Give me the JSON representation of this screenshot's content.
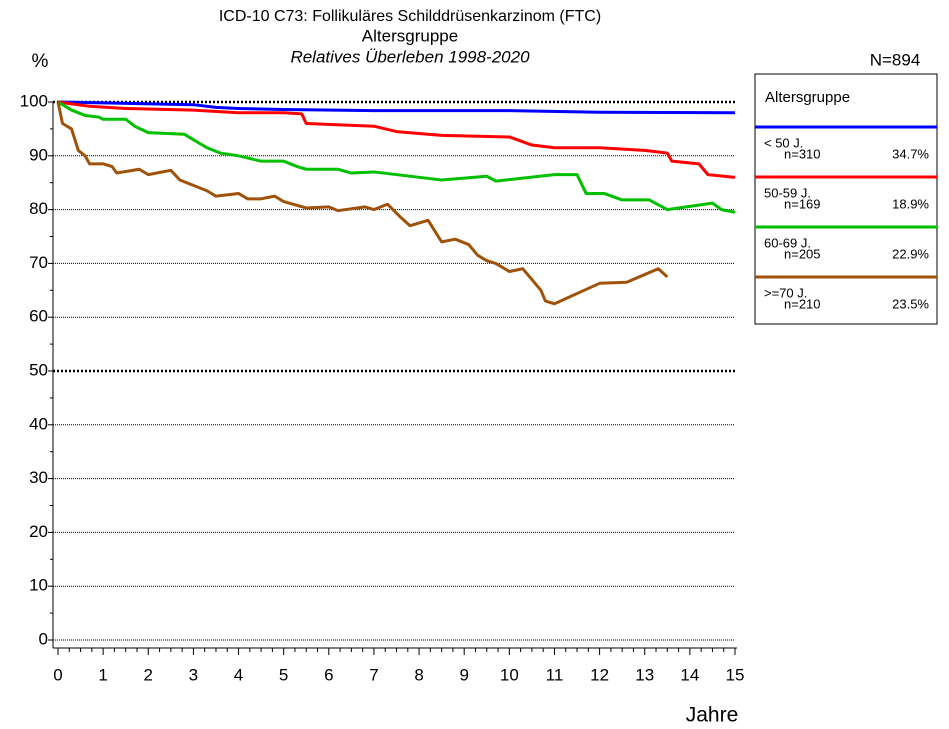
{
  "chart_data": {
    "type": "line",
    "title": "ICD-10 C73: Follikuläres Schilddrüsenkarzinom (FTC)",
    "subtitle": "Altersgruppe",
    "subtitle2": "Relatives Überleben 1998-2020",
    "total": "N=894",
    "y_label": "%",
    "x_label": "Jahre",
    "legend_title": "Altersgruppe",
    "xlim": [
      0,
      15
    ],
    "xticks": [
      0,
      1,
      2,
      3,
      4,
      5,
      6,
      7,
      8,
      9,
      10,
      11,
      12,
      13,
      14,
      15
    ],
    "ylim": [
      0,
      100
    ],
    "yticks": [
      0,
      10,
      20,
      30,
      40,
      50,
      60,
      70,
      80,
      90,
      100
    ],
    "grid": true,
    "emphasized_gridlines": [
      50,
      100
    ],
    "series": [
      {
        "name": "< 50 J.",
        "n": "n=310",
        "share": "34.7%",
        "color": "#0000ff",
        "x": [
          0,
          3,
          3.5,
          4,
          5,
          7,
          10,
          12,
          15
        ],
        "values": [
          100,
          99.5,
          99,
          98.8,
          98.6,
          98.4,
          98.4,
          98.1,
          98
        ]
      },
      {
        "name": "50-59 J.",
        "n": "n=169",
        "share": "18.9%",
        "color": "#ff0000",
        "x": [
          0,
          0.7,
          1.5,
          3,
          4,
          5,
          5.4,
          5.5,
          7,
          7.5,
          8.5,
          10,
          10.5,
          11,
          12,
          13,
          13.5,
          13.6,
          14.2,
          14.4,
          15
        ],
        "values": [
          100,
          99.2,
          98.8,
          98.5,
          98,
          98,
          97.8,
          96,
          95.5,
          94.5,
          93.8,
          93.5,
          92,
          91.5,
          91.5,
          91,
          90.5,
          89,
          88.5,
          86.5,
          86
        ]
      },
      {
        "name": "60-69 J.",
        "n": "n=205",
        "share": "22.9%",
        "color": "#00c000",
        "x": [
          0,
          0.3,
          0.6,
          0.9,
          1,
          1.5,
          1.7,
          2,
          2.8,
          3,
          3.3,
          3.6,
          4,
          4.5,
          5,
          5.3,
          5.5,
          6.2,
          6.5,
          7,
          8,
          8.5,
          9.5,
          9.7,
          11,
          11.5,
          11.7,
          12.1,
          12.5,
          13.1,
          13.5,
          14.5,
          14.7,
          15
        ],
        "values": [
          100,
          98.5,
          97.5,
          97.2,
          96.8,
          96.8,
          95.5,
          94.3,
          94,
          93,
          91.5,
          90.5,
          90,
          89,
          89,
          88,
          87.5,
          87.5,
          86.8,
          87,
          86,
          85.5,
          86.2,
          85.3,
          86.5,
          86.5,
          83,
          83,
          81.8,
          81.8,
          80,
          81.2,
          80,
          79.5
        ]
      },
      {
        "name": ">=70 J.",
        "n": "n=210",
        "share": "23.5%",
        "color": "#a0520a",
        "x": [
          0,
          0.1,
          0.3,
          0.45,
          0.6,
          0.7,
          1,
          1.2,
          1.3,
          1.8,
          2,
          2.5,
          2.7,
          3,
          3.3,
          3.5,
          4,
          4.2,
          4.5,
          4.8,
          5,
          5.5,
          6,
          6.2,
          6.8,
          7,
          7.3,
          7.6,
          7.8,
          8.2,
          8.5,
          8.8,
          9.1,
          9.3,
          9.5,
          9.7,
          10,
          10.3,
          10.5,
          10.7,
          10.8,
          11,
          12,
          12.6,
          13.3,
          13.5
        ],
        "values": [
          100,
          96,
          95,
          91,
          90,
          88.5,
          88.5,
          88,
          86.8,
          87.5,
          86.5,
          87.3,
          85.5,
          84.5,
          83.5,
          82.5,
          83,
          82,
          82,
          82.5,
          81.5,
          80.3,
          80.5,
          79.8,
          80.5,
          80,
          81,
          78.5,
          77,
          78,
          74,
          74.5,
          73.5,
          71.5,
          70.5,
          70,
          68.5,
          69,
          67,
          65,
          63,
          62.5,
          66.3,
          66.5,
          69,
          67.5
        ]
      }
    ]
  }
}
